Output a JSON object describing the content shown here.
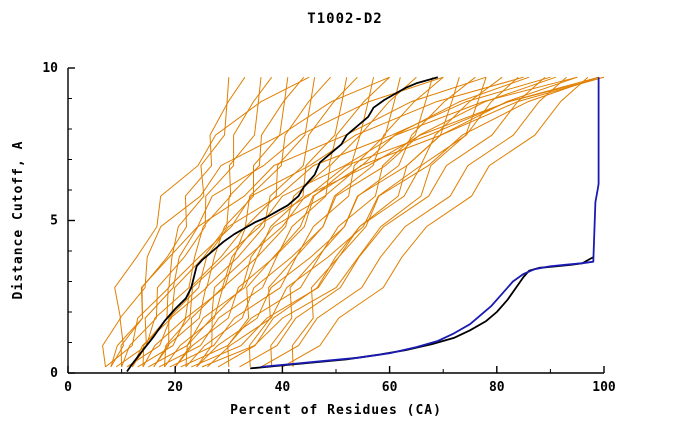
{
  "chart_data": {
    "type": "line",
    "title": "T1002-D2",
    "xlabel": "Percent of Residues (CA)",
    "ylabel": "Distance Cutoff, A",
    "xlim": [
      0,
      100
    ],
    "ylim": [
      0,
      10
    ],
    "x_major_ticks": [
      0,
      20,
      40,
      60,
      80,
      100
    ],
    "x_minor_ticks": [
      10,
      30,
      50,
      70,
      90
    ],
    "y_major_ticks": [
      0,
      5,
      10
    ],
    "y_minor_ticks": [
      1,
      2,
      3,
      4,
      6,
      7,
      8,
      9
    ],
    "grid": false,
    "legend": "none",
    "colors": {
      "ensemble": "#e07f00",
      "model_black": "#000000",
      "model_blue": "#1a1ab4",
      "axis": "#000000"
    },
    "y_levels": [
      0.2,
      0.9,
      1.8,
      2.8,
      3.8,
      4.8,
      5.8,
      6.8,
      7.8,
      8.9,
      9.7
    ],
    "shapes": {
      "lin": [
        0,
        0.1,
        0.2,
        0.3,
        0.4,
        0.5,
        0.6,
        0.7,
        0.8,
        0.9,
        1
      ],
      "ccv": [
        0,
        0.16,
        0.3,
        0.44,
        0.56,
        0.66,
        0.75,
        0.83,
        0.9,
        0.96,
        1
      ],
      "cvx": [
        0,
        0.02,
        0.05,
        0.09,
        0.14,
        0.21,
        0.3,
        0.42,
        0.58,
        0.78,
        1
      ]
    },
    "zigzag": [
      0,
      1.3,
      -0.9,
      1.7,
      -0.5,
      -1.6,
      1.1,
      -1.3,
      1.5,
      0.6,
      0
    ],
    "ensemble_curves": [
      {
        "x0": 7,
        "x10": 30,
        "shape": "ccv"
      },
      {
        "x0": 8,
        "x10": 33,
        "shape": "lin"
      },
      {
        "x0": 9,
        "x10": 36,
        "shape": "ccv"
      },
      {
        "x0": 10,
        "x10": 38,
        "shape": "lin"
      },
      {
        "x0": 11,
        "x10": 41,
        "shape": "ccv"
      },
      {
        "x0": 12,
        "x10": 44,
        "shape": "lin"
      },
      {
        "x0": 13,
        "x10": 46,
        "shape": "ccv"
      },
      {
        "x0": 14,
        "x10": 49,
        "shape": "lin"
      },
      {
        "x0": 15,
        "x10": 52,
        "shape": "ccv"
      },
      {
        "x0": 16,
        "x10": 54,
        "shape": "lin"
      },
      {
        "x0": 17,
        "x10": 57,
        "shape": "ccv"
      },
      {
        "x0": 18,
        "x10": 60,
        "shape": "lin"
      },
      {
        "x0": 19,
        "x10": 62,
        "shape": "ccv"
      },
      {
        "x0": 20,
        "x10": 65,
        "shape": "lin"
      },
      {
        "x0": 21,
        "x10": 68,
        "shape": "ccv"
      },
      {
        "x0": 22,
        "x10": 70,
        "shape": "lin"
      },
      {
        "x0": 23,
        "x10": 73,
        "shape": "ccv"
      },
      {
        "x0": 24,
        "x10": 76,
        "shape": "lin"
      },
      {
        "x0": 25,
        "x10": 78,
        "shape": "ccv"
      },
      {
        "x0": 26,
        "x10": 81,
        "shape": "lin"
      },
      {
        "x0": 28,
        "x10": 84,
        "shape": "lin"
      },
      {
        "x0": 30,
        "x10": 86,
        "shape": "cvx"
      },
      {
        "x0": 32,
        "x10": 89,
        "shape": "lin"
      },
      {
        "x0": 34,
        "x10": 91,
        "shape": "cvx"
      },
      {
        "x0": 36,
        "x10": 93,
        "shape": "lin"
      },
      {
        "x0": 38,
        "x10": 95,
        "shape": "cvx"
      },
      {
        "x0": 40,
        "x10": 97,
        "shape": "lin"
      },
      {
        "x0": 42,
        "x10": 99,
        "shape": "cvx"
      },
      {
        "x0": 8,
        "x10": 60,
        "shape": "cvx"
      },
      {
        "x0": 10,
        "x10": 70,
        "shape": "cvx"
      },
      {
        "x0": 12,
        "x10": 78,
        "shape": "cvx"
      },
      {
        "x0": 14,
        "x10": 85,
        "shape": "cvx"
      },
      {
        "x0": 16,
        "x10": 90,
        "shape": "cvx"
      },
      {
        "x0": 18,
        "x10": 95,
        "shape": "cvx"
      },
      {
        "x0": 20,
        "x10": 99,
        "shape": "cvx"
      },
      {
        "x0": 22,
        "x10": 100,
        "shape": "cvx"
      },
      {
        "x0": 24,
        "x10": 100,
        "shape": "cvx"
      },
      {
        "x0": 7,
        "x10": 45,
        "shape": "cvx"
      }
    ],
    "highlight_series": [
      {
        "name": "model-black-upper",
        "color_key": "model_black",
        "points": [
          [
            11,
            0.05
          ],
          [
            12,
            0.3
          ],
          [
            14,
            0.75
          ],
          [
            16,
            1.2
          ],
          [
            18,
            1.7
          ],
          [
            20,
            2.1
          ],
          [
            22,
            2.45
          ],
          [
            23,
            2.8
          ],
          [
            24,
            3.5
          ],
          [
            25,
            3.7
          ],
          [
            27,
            4.0
          ],
          [
            29,
            4.3
          ],
          [
            31,
            4.55
          ],
          [
            33,
            4.75
          ],
          [
            35,
            4.95
          ],
          [
            37,
            5.1
          ],
          [
            39,
            5.3
          ],
          [
            41,
            5.5
          ],
          [
            43,
            5.8
          ],
          [
            44,
            6.1
          ],
          [
            46,
            6.5
          ],
          [
            47,
            6.9
          ],
          [
            49,
            7.2
          ],
          [
            51,
            7.5
          ],
          [
            52,
            7.8
          ],
          [
            54,
            8.1
          ],
          [
            56,
            8.4
          ],
          [
            57,
            8.7
          ],
          [
            59,
            8.95
          ],
          [
            61,
            9.15
          ],
          [
            63,
            9.35
          ],
          [
            65,
            9.5
          ],
          [
            67,
            9.6
          ],
          [
            69,
            9.7
          ]
        ]
      },
      {
        "name": "model-black-lower",
        "color_key": "model_black",
        "points": [
          [
            34,
            0.15
          ],
          [
            40,
            0.25
          ],
          [
            46,
            0.35
          ],
          [
            52,
            0.45
          ],
          [
            58,
            0.6
          ],
          [
            63,
            0.75
          ],
          [
            68,
            0.95
          ],
          [
            72,
            1.15
          ],
          [
            75,
            1.4
          ],
          [
            78,
            1.7
          ],
          [
            80,
            2.0
          ],
          [
            82,
            2.4
          ],
          [
            84,
            2.9
          ],
          [
            85,
            3.15
          ],
          [
            86,
            3.35
          ],
          [
            88,
            3.45
          ],
          [
            91,
            3.5
          ],
          [
            94,
            3.55
          ],
          [
            96,
            3.6
          ],
          [
            97,
            3.7
          ],
          [
            98,
            3.8
          ]
        ]
      },
      {
        "name": "model-blue",
        "color_key": "model_blue",
        "points": [
          [
            36,
            0.2
          ],
          [
            42,
            0.3
          ],
          [
            48,
            0.4
          ],
          [
            54,
            0.5
          ],
          [
            60,
            0.65
          ],
          [
            65,
            0.85
          ],
          [
            69,
            1.05
          ],
          [
            72,
            1.3
          ],
          [
            75,
            1.6
          ],
          [
            77,
            1.9
          ],
          [
            79,
            2.2
          ],
          [
            81,
            2.6
          ],
          [
            83,
            3.0
          ],
          [
            85,
            3.25
          ],
          [
            87,
            3.4
          ],
          [
            90,
            3.5
          ],
          [
            93,
            3.55
          ],
          [
            96,
            3.6
          ],
          [
            98,
            3.65
          ],
          [
            98.4,
            5.6
          ],
          [
            98.8,
            6.0
          ],
          [
            99,
            6.2
          ],
          [
            99,
            9.7
          ]
        ]
      }
    ]
  }
}
